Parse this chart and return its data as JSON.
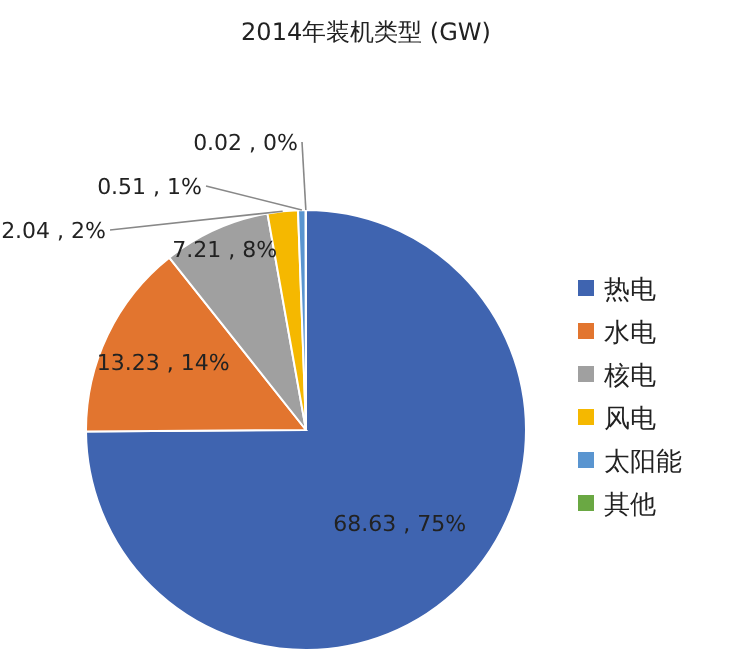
{
  "chart_data": {
    "type": "pie",
    "title": "2014年装机类型 (GW)",
    "categories": [
      "热电",
      "水电",
      "核电",
      "风电",
      "太阳能",
      "其他"
    ],
    "values": [
      68.63,
      13.23,
      7.21,
      2.04,
      0.51,
      0.02
    ],
    "colors": [
      "#3f64b0",
      "#e2752f",
      "#a0a0a0",
      "#f5b800",
      "#5a95d0",
      "#6aa843"
    ],
    "value_labels": [
      "68.63 , 75%",
      "13.23 , 14%",
      "7.21 , 8%",
      "2.04 , 2%",
      "0.51 , 1%",
      "0.02 , 0%"
    ],
    "legend": "right"
  }
}
